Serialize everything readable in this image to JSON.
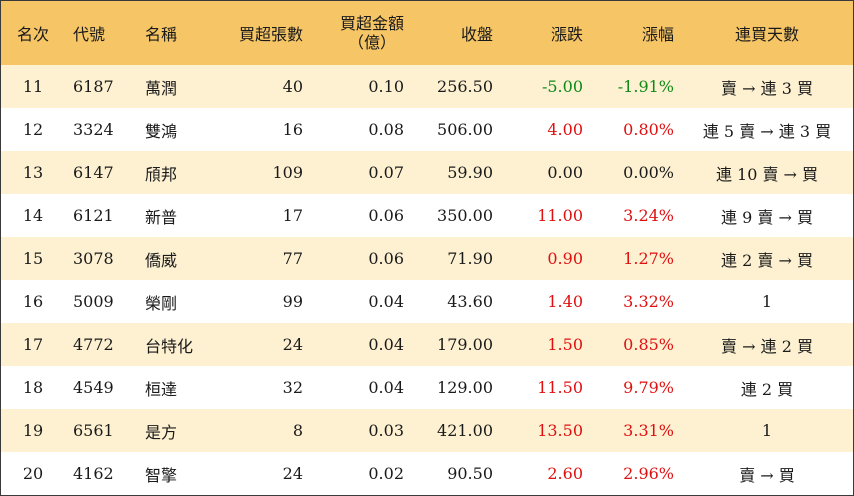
{
  "headers": {
    "rank": "名次",
    "code": "代號",
    "name": "名稱",
    "buy_lots": "買超張數",
    "buy_amount_line1": "買超金額",
    "buy_amount_line2": "（億）",
    "close": "收盤",
    "change": "漲跌",
    "change_pct": "漲幅",
    "consec_days": "連買天數"
  },
  "colors": {
    "header_bg": "#f6c566",
    "alt_row_bg": "#fdf1d2",
    "up": "#e01010",
    "down": "#0d8a18"
  },
  "rows": [
    {
      "rank": "11",
      "code": "6187",
      "name": "萬潤",
      "lots": "40",
      "amount": "0.10",
      "close": "256.50",
      "change": "-5.00",
      "pct": "-1.91%",
      "days": "賣 → 連 3 買",
      "dir": "down"
    },
    {
      "rank": "12",
      "code": "3324",
      "name": "雙鴻",
      "lots": "16",
      "amount": "0.08",
      "close": "506.00",
      "change": "4.00",
      "pct": "0.80%",
      "days": "連 5 賣 → 連 3 買",
      "dir": "up"
    },
    {
      "rank": "13",
      "code": "6147",
      "name": "頎邦",
      "lots": "109",
      "amount": "0.07",
      "close": "59.90",
      "change": "0.00",
      "pct": "0.00%",
      "days": "連 10 賣 → 買",
      "dir": "flat"
    },
    {
      "rank": "14",
      "code": "6121",
      "name": "新普",
      "lots": "17",
      "amount": "0.06",
      "close": "350.00",
      "change": "11.00",
      "pct": "3.24%",
      "days": "連 9 賣 → 買",
      "dir": "up"
    },
    {
      "rank": "15",
      "code": "3078",
      "name": "僑威",
      "lots": "77",
      "amount": "0.06",
      "close": "71.90",
      "change": "0.90",
      "pct": "1.27%",
      "days": "連 2 賣 → 買",
      "dir": "up"
    },
    {
      "rank": "16",
      "code": "5009",
      "name": "榮剛",
      "lots": "99",
      "amount": "0.04",
      "close": "43.60",
      "change": "1.40",
      "pct": "3.32%",
      "days": "1",
      "dir": "up"
    },
    {
      "rank": "17",
      "code": "4772",
      "name": "台特化",
      "lots": "24",
      "amount": "0.04",
      "close": "179.00",
      "change": "1.50",
      "pct": "0.85%",
      "days": "賣 → 連 2 買",
      "dir": "up"
    },
    {
      "rank": "18",
      "code": "4549",
      "name": "桓達",
      "lots": "32",
      "amount": "0.04",
      "close": "129.00",
      "change": "11.50",
      "pct": "9.79%",
      "days": "連 2 買",
      "dir": "up"
    },
    {
      "rank": "19",
      "code": "6561",
      "name": "是方",
      "lots": "8",
      "amount": "0.03",
      "close": "421.00",
      "change": "13.50",
      "pct": "3.31%",
      "days": "1",
      "dir": "up"
    },
    {
      "rank": "20",
      "code": "4162",
      "name": "智擎",
      "lots": "24",
      "amount": "0.02",
      "close": "90.50",
      "change": "2.60",
      "pct": "2.96%",
      "days": "賣 → 買",
      "dir": "up"
    }
  ]
}
